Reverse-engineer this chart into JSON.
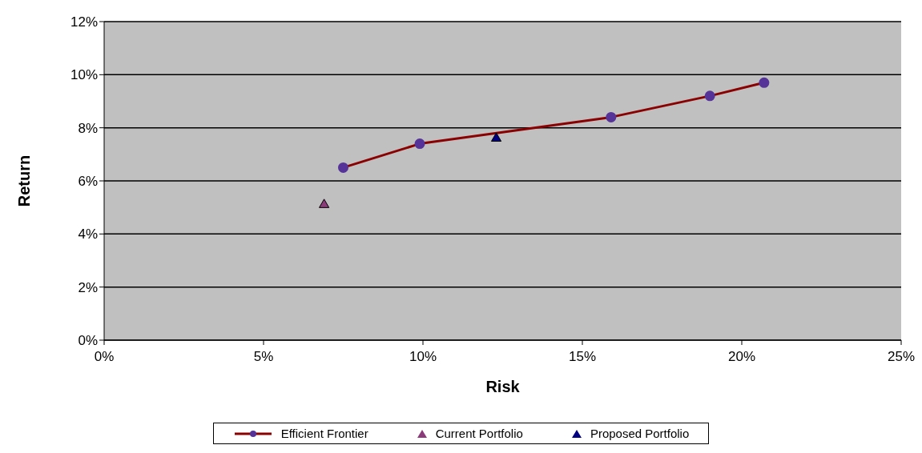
{
  "chart_data": {
    "type": "line",
    "xlabel": "Risk",
    "ylabel": "Return",
    "xlim": [
      0,
      25
    ],
    "xticks": [
      {
        "value": 0,
        "label": "0%"
      },
      {
        "value": 5,
        "label": "5%"
      },
      {
        "value": 10,
        "label": "10%"
      },
      {
        "value": 15,
        "label": "15%"
      },
      {
        "value": 20,
        "label": "20%"
      },
      {
        "value": 25,
        "label": "25%"
      }
    ],
    "ylim": [
      0,
      12
    ],
    "yticks": [
      {
        "value": 0,
        "label": "0%"
      },
      {
        "value": 2,
        "label": "2%"
      },
      {
        "value": 4,
        "label": "4%"
      },
      {
        "value": 6,
        "label": "6%"
      },
      {
        "value": 8,
        "label": "8%"
      },
      {
        "value": 10,
        "label": "10%"
      },
      {
        "value": 12,
        "label": "12%"
      }
    ],
    "grid": "y",
    "legend": "bottom",
    "series": [
      {
        "name": "Efficient Frontier",
        "color": "#8b0000",
        "marker": "circle",
        "x": [
          7.5,
          9.9,
          15.9,
          19.0,
          20.7
        ],
        "values": [
          6.5,
          7.4,
          8.4,
          9.2,
          9.7
        ]
      },
      {
        "name": "Current Portfolio",
        "type": "scatter",
        "color": "#8b3a7a",
        "marker": "triangle",
        "x": [
          6.9
        ],
        "values": [
          5.1
        ]
      },
      {
        "name": "Proposed Portfolio",
        "type": "scatter",
        "color": "#000080",
        "marker": "triangle",
        "x": [
          12.3
        ],
        "values": [
          7.6
        ]
      }
    ]
  }
}
